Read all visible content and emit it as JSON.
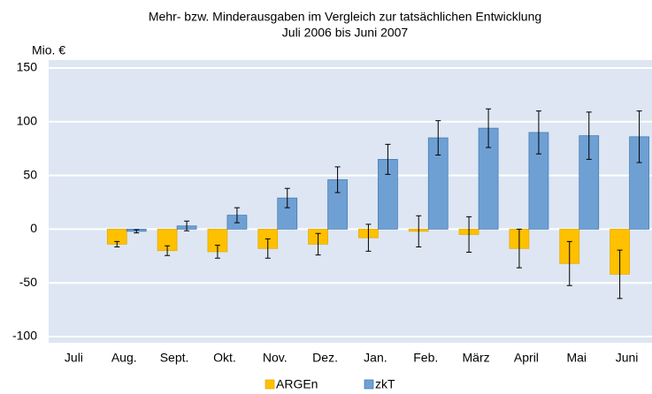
{
  "chart_data": {
    "type": "bar",
    "title": "Mehr- bzw. Minderausgaben im Vergleich zur tatsächlichen Entwicklung",
    "subtitle": "Juli 2006 bis Juni 2007",
    "y_label": "Mio. €",
    "categories": [
      "Juli",
      "Aug.",
      "Sept.",
      "Okt.",
      "Nov.",
      "Dez.",
      "Jan.",
      "Feb.",
      "März",
      "April",
      "Mai",
      "Juni"
    ],
    "series": [
      {
        "name": "ARGEn",
        "color": "#ffc000",
        "values": [
          null,
          -14,
          -20,
          -21,
          -18,
          -14,
          -8,
          -2,
          -5,
          -18,
          -32,
          -42
        ],
        "errors": [
          null,
          2.5,
          4.5,
          6,
          9,
          10,
          12.5,
          14.5,
          16.5,
          18,
          20.5,
          22.5
        ]
      },
      {
        "name": "zkT",
        "color": "#6fa0d4",
        "values": [
          null,
          -2,
          3,
          13,
          29,
          46,
          65,
          85,
          94,
          90,
          87,
          86
        ],
        "errors": [
          null,
          1.5,
          4.5,
          7,
          9,
          12,
          14,
          16,
          18,
          20,
          22,
          24
        ]
      }
    ],
    "ylim": [
      -100,
      150
    ],
    "yticks": [
      -100,
      -50,
      0,
      50,
      100,
      150
    ],
    "grid": true
  }
}
